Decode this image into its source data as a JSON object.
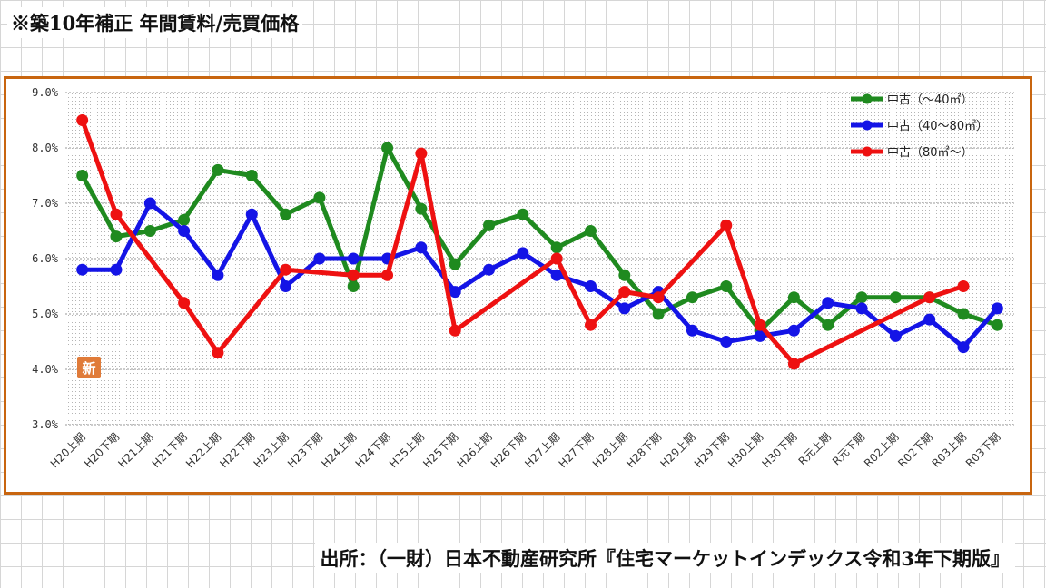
{
  "title": "※築10年補正  年間賃料/売買価格",
  "source": "出所：（一財）日本不動産研究所『住宅マーケットインデックス令和3年下期版』",
  "badge": "新",
  "colors": {
    "frame": "#c8650f",
    "badge": "#e07b39"
  },
  "chart_data": {
    "type": "line",
    "title": "※築10年補正  年間賃料/売買価格",
    "ylim": [
      3.0,
      9.0
    ],
    "yticks": [
      "3.0%",
      "4.0%",
      "5.0%",
      "6.0%",
      "7.0%",
      "8.0%",
      "9.0%"
    ],
    "grid": true,
    "legend_position": "top-right",
    "categories": [
      "H20上期",
      "H20下期",
      "H21上期",
      "H21下期",
      "H22上期",
      "H22下期",
      "H23上期",
      "H23下期",
      "H24上期",
      "H24下期",
      "H25上期",
      "H25下期",
      "H26上期",
      "H26下期",
      "H27上期",
      "H27下期",
      "H28上期",
      "H28下期",
      "H29上期",
      "H29下期",
      "H30上期",
      "H30下期",
      "R元上期",
      "R元下期",
      "R02上期",
      "R02下期",
      "R03上期",
      "R03下期"
    ],
    "series": [
      {
        "name": "中古（～40㎡）",
        "color": "#1f8a1f",
        "values": [
          7.5,
          6.4,
          6.5,
          6.7,
          7.6,
          7.5,
          6.8,
          7.1,
          5.5,
          8.0,
          6.9,
          5.9,
          6.6,
          6.8,
          6.2,
          6.5,
          5.7,
          5.0,
          5.3,
          5.5,
          4.7,
          5.3,
          4.8,
          5.3,
          5.3,
          5.3,
          5.0,
          4.8
        ]
      },
      {
        "name": "中古（40～80㎡）",
        "color": "#1414e6",
        "values": [
          5.8,
          5.8,
          7.0,
          6.5,
          5.7,
          6.8,
          5.5,
          6.0,
          6.0,
          6.0,
          6.2,
          5.4,
          5.8,
          6.1,
          5.7,
          5.5,
          5.1,
          5.4,
          4.7,
          4.5,
          4.6,
          4.7,
          5.2,
          5.1,
          4.6,
          4.9,
          4.4,
          5.1
        ]
      },
      {
        "name": "中古（80㎡～）",
        "color": "#ee1111",
        "values": [
          8.5,
          6.8,
          null,
          5.2,
          4.3,
          null,
          5.8,
          null,
          5.7,
          5.7,
          7.9,
          4.7,
          null,
          null,
          6.0,
          4.8,
          5.4,
          5.3,
          null,
          6.6,
          4.8,
          4.1,
          null,
          null,
          null,
          5.3,
          5.5,
          null
        ]
      }
    ]
  }
}
